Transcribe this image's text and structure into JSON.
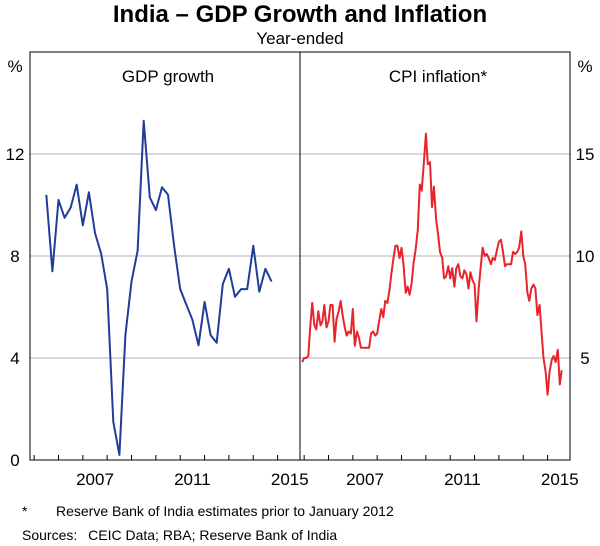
{
  "chart_data": {
    "type": "line",
    "title": "India – GDP Growth and Inflation",
    "subtitle": "Year-ended",
    "x_ticks": [
      "2007",
      "2011",
      "2015"
    ],
    "panels": [
      {
        "name": "GDP growth",
        "y_unit": "%",
        "ylim": [
          0,
          16
        ],
        "y_ticks": [
          "0",
          "4",
          "8",
          "12"
        ],
        "series": [
          {
            "name": "GDP growth",
            "color": "#1f3d99",
            "x": [
              2005.5,
              2005.75,
              2006.0,
              2006.25,
              2006.5,
              2006.75,
              2007.0,
              2007.25,
              2007.5,
              2007.75,
              2008.0,
              2008.25,
              2008.5,
              2008.75,
              2009.0,
              2009.25,
              2009.5,
              2009.75,
              2010.0,
              2010.25,
              2010.5,
              2010.75,
              2011.0,
              2011.25,
              2011.5,
              2011.75,
              2012.0,
              2012.25,
              2012.5,
              2012.75,
              2013.0,
              2013.25,
              2013.5,
              2013.75,
              2014.0,
              2014.25,
              2014.5,
              2014.75,
              2015.0
            ],
            "values": [
              10.4,
              7.4,
              10.2,
              9.5,
              9.9,
              10.8,
              9.2,
              10.5,
              8.9,
              8.1,
              6.7,
              1.5,
              0.2,
              4.9,
              7.0,
              8.2,
              13.3,
              10.3,
              9.8,
              10.7,
              10.4,
              8.4,
              6.7,
              6.1,
              5.5,
              4.5,
              6.2,
              4.9,
              4.6,
              6.9,
              7.5,
              6.4,
              6.7,
              6.7,
              8.4,
              6.6,
              7.5,
              7.0,
              null
            ]
          }
        ]
      },
      {
        "name": "CPI inflation*",
        "y_unit": "%",
        "ylim": [
          0,
          20
        ],
        "y_ticks": [
          "5",
          "10",
          "15"
        ],
        "series": [
          {
            "name": "CPI inflation",
            "color": "#e8242b",
            "x": [
              2004.92,
              2005.0,
              2005.08,
              2005.17,
              2005.25,
              2005.33,
              2005.42,
              2005.5,
              2005.58,
              2005.67,
              2005.75,
              2005.83,
              2005.92,
              2006.0,
              2006.08,
              2006.17,
              2006.25,
              2006.33,
              2006.42,
              2006.5,
              2006.58,
              2006.67,
              2006.75,
              2006.83,
              2006.92,
              2007.0,
              2007.08,
              2007.17,
              2007.25,
              2007.33,
              2007.42,
              2007.5,
              2007.58,
              2007.67,
              2007.75,
              2007.83,
              2007.92,
              2008.0,
              2008.08,
              2008.17,
              2008.25,
              2008.33,
              2008.42,
              2008.5,
              2008.58,
              2008.67,
              2008.75,
              2008.83,
              2008.92,
              2009.0,
              2009.08,
              2009.17,
              2009.25,
              2009.33,
              2009.42,
              2009.5,
              2009.58,
              2009.67,
              2009.75,
              2009.83,
              2009.92,
              2010.0,
              2010.08,
              2010.17,
              2010.25,
              2010.33,
              2010.42,
              2010.5,
              2010.58,
              2010.67,
              2010.75,
              2010.83,
              2010.92,
              2011.0,
              2011.08,
              2011.17,
              2011.25,
              2011.33,
              2011.42,
              2011.5,
              2011.58,
              2011.67,
              2011.75,
              2011.83,
              2011.92,
              2012.0,
              2012.08,
              2012.17,
              2012.25,
              2012.33,
              2012.42,
              2012.5,
              2012.58,
              2012.67,
              2012.75,
              2012.83,
              2012.92,
              2013.0,
              2013.08,
              2013.17,
              2013.25,
              2013.33,
              2013.42,
              2013.5,
              2013.58,
              2013.67,
              2013.75,
              2013.83,
              2013.92,
              2014.0,
              2014.08,
              2014.17,
              2014.25,
              2014.33,
              2014.42,
              2014.5,
              2014.58,
              2014.67,
              2014.75,
              2014.83,
              2014.92,
              2015.0,
              2015.08,
              2015.17,
              2015.25,
              2015.33
            ],
            "values": [
              4.8,
              5.0,
              5.0,
              5.1,
              6.5,
              7.7,
              6.6,
              6.4,
              7.3,
              6.6,
              6.8,
              7.6,
              6.5,
              6.8,
              7.6,
              7.6,
              5.8,
              6.9,
              7.3,
              7.8,
              7.1,
              6.5,
              6.1,
              6.3,
              6.2,
              7.4,
              5.6,
              6.3,
              6.0,
              5.5,
              5.5,
              5.5,
              5.5,
              5.5,
              6.2,
              6.3,
              6.1,
              6.2,
              6.8,
              7.4,
              7.0,
              7.8,
              7.7,
              8.3,
              9.1,
              9.9,
              10.5,
              10.5,
              9.9,
              10.4,
              9.6,
              8.2,
              8.5,
              8.1,
              8.7,
              9.7,
              10.3,
              11.3,
              13.5,
              13.2,
              14.6,
              16.0,
              14.5,
              14.6,
              12.4,
              13.4,
              11.8,
              11.1,
              10.2,
              9.9,
              8.9,
              9.0,
              9.5,
              8.9,
              9.4,
              8.5,
              9.4,
              9.6,
              9.0,
              8.9,
              9.3,
              9.1,
              8.4,
              9.2,
              8.8,
              8.6,
              6.8,
              8.4,
              9.4,
              10.4,
              10.0,
              10.1,
              9.9,
              9.6,
              9.9,
              9.8,
              10.3,
              10.7,
              10.8,
              10.2,
              9.5,
              9.6,
              9.6,
              9.6,
              10.2,
              10.1,
              10.2,
              10.4,
              11.2,
              10.0,
              9.6,
              8.2,
              7.8,
              8.4,
              8.6,
              8.4,
              7.1,
              7.6,
              6.3,
              5.0,
              4.3,
              3.2,
              4.3,
              4.9,
              5.1,
              4.8
            ],
            "extra_x": [
              2015.42,
              2015.5,
              2015.58
            ],
            "extra_values": [
              5.4,
              3.7,
              4.4
            ]
          }
        ]
      }
    ]
  },
  "footnotes": {
    "star": "*",
    "note": "Reserve Bank of India estimates prior to January 2012",
    "sources": "Sources:  CEIC Data; RBA; Reserve Bank of India"
  }
}
